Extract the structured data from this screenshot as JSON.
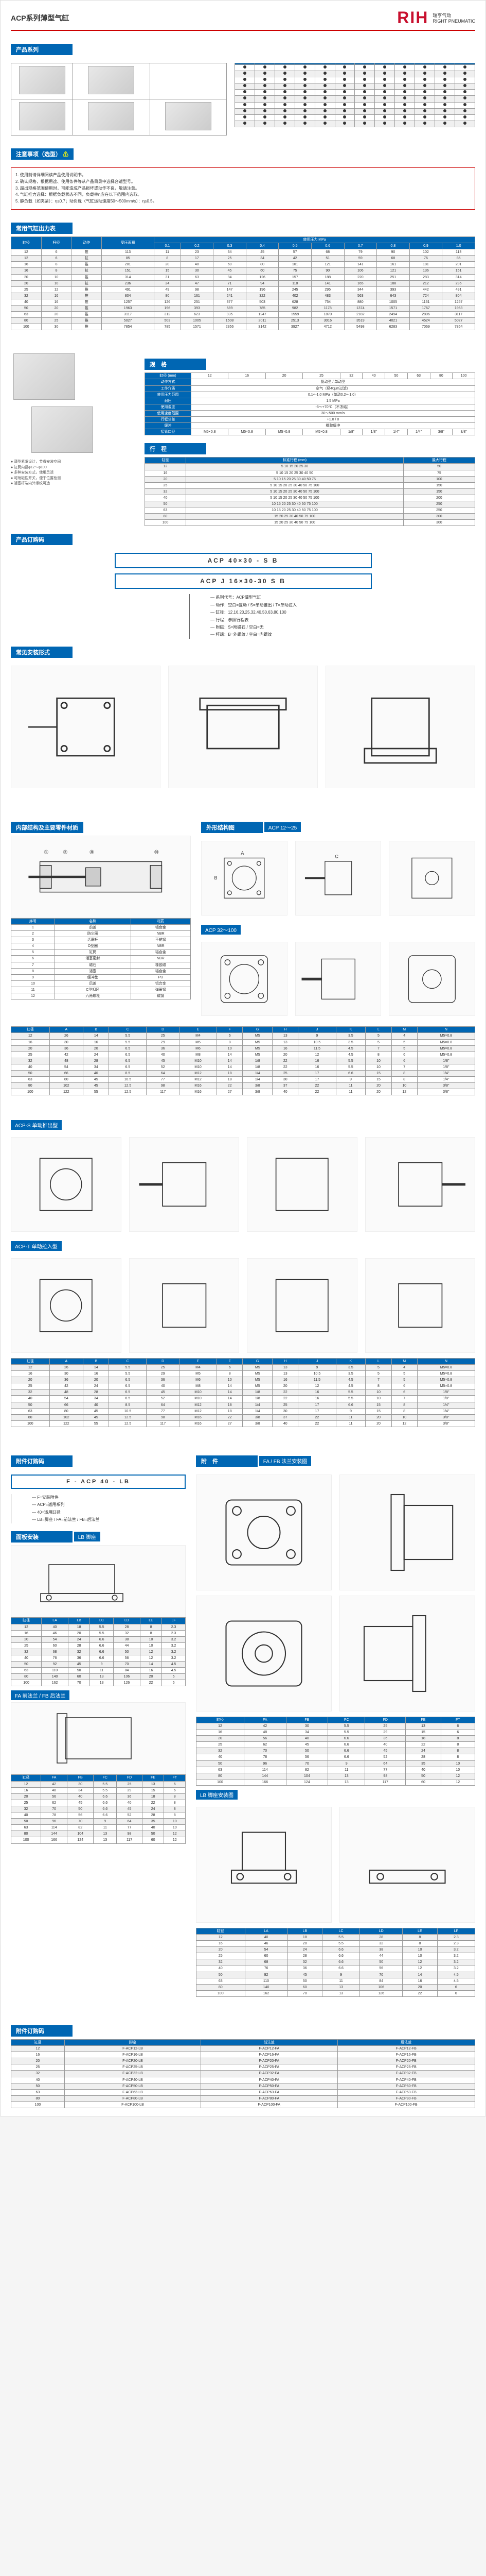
{
  "brand": {
    "name": "RIH",
    "sub1": "瑞亨气动",
    "sub2": "RIGHT PNEUMATIC"
  },
  "page_title": "ACP系列薄型气缸",
  "sections": {
    "series": "产品系列",
    "caution": "注意事项（选型）",
    "output": "常用气缸出力表",
    "spec": "规　格",
    "stroke": "行　程",
    "order": "产品订购码",
    "mount": "常见安装形式",
    "inner": "内部结构及主要零件材质",
    "outer": "外形结构图",
    "mount_code": "附件订购码",
    "panel": "面板安装",
    "accessory": "附　件"
  },
  "caution_icon": "⚠",
  "caution_text": [
    "1. 使用前请详细阅读产品使用说明书。",
    "2. 确认规格，根据用途、使用条件等从产品目录中选择合适型号。",
    "3. 超出规格范围使用时，可能造成产品损坏或动作不良，敬请注意。",
    "4. 气缸推力选择：根据负载状态不同，负载率η应在以下范围内选取。",
    "5. 静负载（如夹紧）：η≤0.7；动负载（气缸运动速度50～500mm/s）：η≤0.5。"
  ],
  "output_table": {
    "headers": [
      "缸径",
      "杆径",
      "动作",
      "受压面积",
      "使用压力 MPa"
    ],
    "pressure_cols": [
      "0.1",
      "0.2",
      "0.3",
      "0.4",
      "0.5",
      "0.6",
      "0.7",
      "0.8",
      "0.9",
      "1.0"
    ],
    "rows": [
      {
        "bore": "12",
        "rod": "6",
        "act": "推",
        "area": "113",
        "vals": [
          "11",
          "23",
          "34",
          "45",
          "57",
          "68",
          "79",
          "90",
          "102",
          "113"
        ]
      },
      {
        "bore": "12",
        "rod": "6",
        "act": "拉",
        "area": "85",
        "vals": [
          "8",
          "17",
          "25",
          "34",
          "42",
          "51",
          "59",
          "68",
          "76",
          "85"
        ]
      },
      {
        "bore": "16",
        "rod": "8",
        "act": "推",
        "area": "201",
        "vals": [
          "20",
          "40",
          "60",
          "80",
          "101",
          "121",
          "141",
          "161",
          "181",
          "201"
        ]
      },
      {
        "bore": "16",
        "rod": "8",
        "act": "拉",
        "area": "151",
        "vals": [
          "15",
          "30",
          "45",
          "60",
          "75",
          "90",
          "106",
          "121",
          "136",
          "151"
        ]
      },
      {
        "bore": "20",
        "rod": "10",
        "act": "推",
        "area": "314",
        "vals": [
          "31",
          "63",
          "94",
          "126",
          "157",
          "188",
          "220",
          "251",
          "283",
          "314"
        ]
      },
      {
        "bore": "20",
        "rod": "10",
        "act": "拉",
        "area": "236",
        "vals": [
          "24",
          "47",
          "71",
          "94",
          "118",
          "141",
          "165",
          "188",
          "212",
          "236"
        ]
      },
      {
        "bore": "25",
        "rod": "12",
        "act": "推",
        "area": "491",
        "vals": [
          "49",
          "98",
          "147",
          "196",
          "245",
          "295",
          "344",
          "393",
          "442",
          "491"
        ]
      },
      {
        "bore": "32",
        "rod": "16",
        "act": "推",
        "area": "804",
        "vals": [
          "80",
          "161",
          "241",
          "322",
          "402",
          "483",
          "563",
          "643",
          "724",
          "804"
        ]
      },
      {
        "bore": "40",
        "rod": "16",
        "act": "推",
        "area": "1257",
        "vals": [
          "126",
          "251",
          "377",
          "503",
          "628",
          "754",
          "880",
          "1005",
          "1131",
          "1257"
        ]
      },
      {
        "bore": "50",
        "rod": "20",
        "act": "推",
        "area": "1963",
        "vals": [
          "196",
          "393",
          "589",
          "785",
          "982",
          "1178",
          "1374",
          "1571",
          "1767",
          "1963"
        ]
      },
      {
        "bore": "63",
        "rod": "20",
        "act": "推",
        "area": "3117",
        "vals": [
          "312",
          "623",
          "935",
          "1247",
          "1559",
          "1870",
          "2182",
          "2494",
          "2806",
          "3117"
        ]
      },
      {
        "bore": "80",
        "rod": "25",
        "act": "推",
        "area": "5027",
        "vals": [
          "503",
          "1005",
          "1508",
          "2011",
          "2513",
          "3016",
          "3519",
          "4021",
          "4524",
          "5027"
        ]
      },
      {
        "bore": "100",
        "rod": "30",
        "act": "推",
        "area": "7854",
        "vals": [
          "785",
          "1571",
          "2356",
          "3142",
          "3927",
          "4712",
          "5498",
          "6283",
          "7069",
          "7854"
        ]
      }
    ]
  },
  "spec_table": {
    "rows": [
      [
        "缸径 (mm)",
        "12",
        "16",
        "20",
        "25",
        "32",
        "40",
        "50",
        "63",
        "80",
        "100"
      ],
      [
        "动作方式",
        "复动型 / 单动型"
      ],
      [
        "工作介质",
        "空气（经40μm过滤）"
      ],
      [
        "使用压力范围",
        "0.1～1.0 MPa（单动0.2～1.0）"
      ],
      [
        "耐压",
        "1.5 MPa"
      ],
      [
        "使用温度",
        "-5～+70°C（不冻结）"
      ],
      [
        "使用速度范围",
        "30～500 mm/s"
      ],
      [
        "行程公差",
        "+1.0 / 0"
      ],
      [
        "缓冲",
        "橡胶缓冲"
      ],
      [
        "接管口径",
        "M5×0.8",
        "M5×0.8",
        "M5×0.8",
        "M5×0.8",
        "1/8\"",
        "1/8\"",
        "1/4\"",
        "1/4\"",
        "3/8\"",
        "3/8\""
      ]
    ]
  },
  "stroke_table": {
    "headers": [
      "缸径",
      "标准行程 (mm)",
      "最大行程"
    ],
    "rows": [
      [
        "12",
        "5 10 15 20 25 30",
        "50"
      ],
      [
        "16",
        "5 10 15 20 25 30 40 50",
        "75"
      ],
      [
        "20",
        "5 10 15 20 25 30 40 50 75",
        "100"
      ],
      [
        "25",
        "5 10 15 20 25 30 40 50 75 100",
        "150"
      ],
      [
        "32",
        "5 10 15 20 25 30 40 50 75 100",
        "150"
      ],
      [
        "40",
        "5 10 15 20 25 30 40 50 75 100",
        "200"
      ],
      [
        "50",
        "10 15 20 25 30 40 50 75 100",
        "250"
      ],
      [
        "63",
        "10 15 20 25 30 40 50 75 100",
        "250"
      ],
      [
        "80",
        "15 20 25 30 40 50 75 100",
        "300"
      ],
      [
        "100",
        "15 20 25 30 40 50 75 100",
        "300"
      ]
    ]
  },
  "order_codes": [
    "ACP 40×30 - S B",
    "ACP J 16×30-30 S B"
  ],
  "order_tree": [
    "系列代号：ACP薄型气缸",
    "动作：空白=复动 / S=单动推出 / T=单动拉入",
    "缸径：12,16,20,25,32,40,50,63,80,100",
    "行程：参照行程表",
    "附磁：S=附磁石 / 空白=无",
    "杆端：B=外螺纹 / 空白=内螺纹"
  ],
  "parts_table": {
    "headers": [
      "序号",
      "名称",
      "材质"
    ],
    "rows": [
      [
        "1",
        "前盖",
        "铝合金"
      ],
      [
        "2",
        "防尘圈",
        "NBR"
      ],
      [
        "3",
        "活塞杆",
        "不锈钢"
      ],
      [
        "4",
        "O型圈",
        "NBR"
      ],
      [
        "5",
        "缸筒",
        "铝合金"
      ],
      [
        "6",
        "活塞密封",
        "NBR"
      ],
      [
        "7",
        "磁石",
        "橡胶磁"
      ],
      [
        "8",
        "活塞",
        "铝合金"
      ],
      [
        "9",
        "缓冲垫",
        "PU"
      ],
      [
        "10",
        "后盖",
        "铝合金"
      ],
      [
        "11",
        "C型扣环",
        "弹簧钢"
      ],
      [
        "12",
        "六角螺栓",
        "碳钢"
      ]
    ]
  },
  "dim_headers": [
    "缸径",
    "A",
    "B",
    "C",
    "D",
    "E",
    "F",
    "G",
    "H",
    "J",
    "K",
    "L",
    "M",
    "N"
  ],
  "dim_rows": [
    [
      "12",
      "26",
      "14",
      "5.5",
      "25",
      "M4",
      "6",
      "M5",
      "13",
      "9",
      "3.5",
      "5",
      "4",
      "M5×0.8"
    ],
    [
      "16",
      "30",
      "16",
      "5.5",
      "29",
      "M5",
      "8",
      "M5",
      "13",
      "10.5",
      "3.5",
      "5",
      "5",
      "M5×0.8"
    ],
    [
      "20",
      "36",
      "20",
      "6.5",
      "36",
      "M6",
      "10",
      "M5",
      "16",
      "11.5",
      "4.5",
      "7",
      "5",
      "M5×0.8"
    ],
    [
      "25",
      "42",
      "24",
      "6.5",
      "40",
      "M8",
      "14",
      "M5",
      "20",
      "12",
      "4.5",
      "8",
      "6",
      "M5×0.8"
    ],
    [
      "32",
      "48",
      "28",
      "6.5",
      "45",
      "M10",
      "14",
      "1/8",
      "22",
      "16",
      "5.5",
      "10",
      "6",
      "1/8\""
    ],
    [
      "40",
      "54",
      "34",
      "6.5",
      "52",
      "M10",
      "14",
      "1/8",
      "22",
      "16",
      "5.5",
      "10",
      "7",
      "1/8\""
    ],
    [
      "50",
      "66",
      "40",
      "8.5",
      "64",
      "M12",
      "18",
      "1/4",
      "25",
      "17",
      "6.6",
      "15",
      "8",
      "1/4\""
    ],
    [
      "63",
      "80",
      "45",
      "10.5",
      "77",
      "M12",
      "18",
      "1/4",
      "30",
      "17",
      "9",
      "15",
      "8",
      "1/4\""
    ],
    [
      "80",
      "102",
      "45",
      "12.5",
      "98",
      "M16",
      "22",
      "3/8",
      "37",
      "22",
      "11",
      "20",
      "10",
      "3/8\""
    ],
    [
      "100",
      "122",
      "55",
      "12.5",
      "117",
      "M16",
      "27",
      "3/8",
      "40",
      "22",
      "11",
      "20",
      "12",
      "3/8\""
    ]
  ],
  "mount_code_box": "F - ACP 40 - LB",
  "mount_tree": [
    "F=安装附件",
    "ACP=适用系列",
    "40=适用缸径",
    "LB=脚座 / FA=前法兰 / FB=后法兰"
  ],
  "acc_tables": {
    "lb": {
      "title": "LB 脚座",
      "headers": [
        "缸径",
        "LA",
        "LB",
        "LC",
        "LD",
        "LE",
        "LF"
      ],
      "rows": [
        [
          "12",
          "40",
          "18",
          "5.5",
          "28",
          "8",
          "2.3"
        ],
        [
          "16",
          "46",
          "20",
          "5.5",
          "32",
          "8",
          "2.3"
        ],
        [
          "20",
          "54",
          "24",
          "6.6",
          "38",
          "10",
          "3.2"
        ],
        [
          "25",
          "60",
          "28",
          "6.6",
          "44",
          "10",
          "3.2"
        ],
        [
          "32",
          "68",
          "32",
          "6.6",
          "50",
          "12",
          "3.2"
        ],
        [
          "40",
          "76",
          "36",
          "6.6",
          "56",
          "12",
          "3.2"
        ],
        [
          "50",
          "92",
          "45",
          "9",
          "70",
          "14",
          "4.5"
        ],
        [
          "63",
          "110",
          "50",
          "11",
          "84",
          "16",
          "4.5"
        ],
        [
          "80",
          "140",
          "60",
          "13",
          "106",
          "20",
          "6"
        ],
        [
          "100",
          "162",
          "70",
          "13",
          "126",
          "22",
          "6"
        ]
      ]
    },
    "fa": {
      "title": "FA 前法兰 / FB 后法兰",
      "headers": [
        "缸径",
        "FA",
        "FB",
        "FC",
        "FD",
        "FE",
        "FT"
      ],
      "rows": [
        [
          "12",
          "42",
          "30",
          "5.5",
          "25",
          "13",
          "6"
        ],
        [
          "16",
          "48",
          "34",
          "5.5",
          "29",
          "15",
          "6"
        ],
        [
          "20",
          "56",
          "40",
          "6.6",
          "36",
          "18",
          "8"
        ],
        [
          "25",
          "62",
          "45",
          "6.6",
          "40",
          "22",
          "8"
        ],
        [
          "32",
          "70",
          "50",
          "6.6",
          "45",
          "24",
          "8"
        ],
        [
          "40",
          "78",
          "56",
          "6.6",
          "52",
          "28",
          "8"
        ],
        [
          "50",
          "96",
          "70",
          "9",
          "64",
          "35",
          "10"
        ],
        [
          "63",
          "114",
          "82",
          "11",
          "77",
          "40",
          "10"
        ],
        [
          "80",
          "144",
          "104",
          "13",
          "98",
          "50",
          "12"
        ],
        [
          "100",
          "166",
          "124",
          "13",
          "117",
          "60",
          "12"
        ]
      ]
    }
  }
}
